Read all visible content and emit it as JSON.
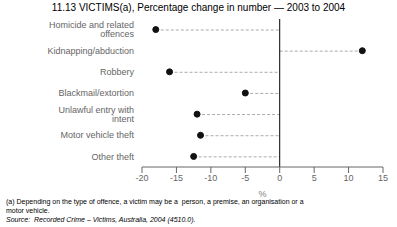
{
  "chart_data": {
    "type": "dot",
    "title": "11.13   VICTIMS(a), Percentage change in number — 2003 to 2004",
    "orientation": "horizontal",
    "categories": [
      "Homicide and related offences",
      "Kidnapping/abduction",
      "Robbery",
      "Blackmail/extortion",
      "Unlawful entry with intent",
      "Motor vehicle theft",
      "Other theft"
    ],
    "values": [
      -18.0,
      12.0,
      -16.0,
      -5.0,
      -12.0,
      -11.5,
      -12.5
    ],
    "xlim": [
      -20,
      15
    ],
    "xticks": [
      -20,
      -15,
      -10,
      -5,
      0,
      5,
      10,
      15
    ],
    "xlabel": "%",
    "color": "#111111",
    "line_style": "dashed",
    "grid": false,
    "annotations": [
      "(a) Depending on the type of offence, a victim may be a  person, a premise, an organisation or a",
      "motor vehicle.",
      "Source:  Recorded Crime – Victims, Australia, 2004 (4510.0)."
    ]
  }
}
